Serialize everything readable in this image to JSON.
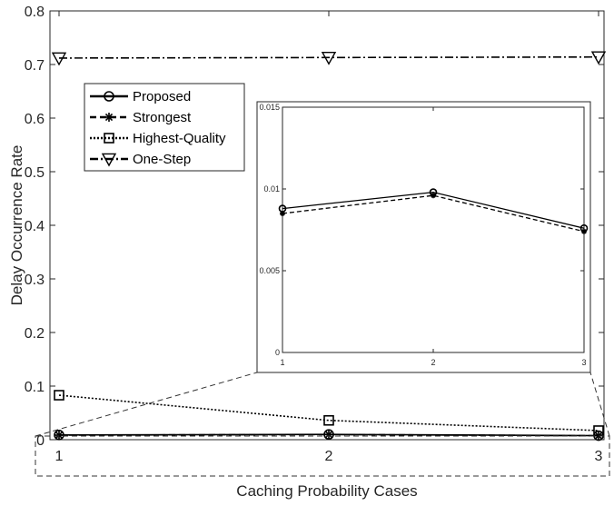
{
  "chart_data": [
    {
      "type": "line",
      "xlabel": "Caching Probability Cases",
      "ylabel": "Delay Occurrence Rate",
      "x": [
        1,
        2,
        3
      ],
      "xticks": [
        "1",
        "2",
        "3"
      ],
      "ylim": [
        0,
        0.8
      ],
      "yticks": [
        "0",
        "0.1",
        "0.2",
        "0.3",
        "0.4",
        "0.5",
        "0.6",
        "0.7",
        "0.8"
      ],
      "grid": false,
      "legend_position": "upper-left",
      "series": [
        {
          "name": "Proposed",
          "values": [
            0.0088,
            0.0098,
            0.0076
          ],
          "marker": "circle",
          "dash": "solid"
        },
        {
          "name": "Strongest",
          "values": [
            0.0085,
            0.0096,
            0.0074
          ],
          "marker": "asterisk",
          "dash": "dashed"
        },
        {
          "name": "Highest-Quality",
          "values": [
            0.083,
            0.036,
            0.017
          ],
          "marker": "square",
          "dash": "dotted"
        },
        {
          "name": "One-Step",
          "values": [
            0.712,
            0.713,
            0.714
          ],
          "marker": "triangle-down",
          "dash": "dashdot"
        }
      ]
    },
    {
      "type": "line",
      "role": "inset-zoom",
      "x": [
        1,
        2,
        3
      ],
      "xticks": [
        "1",
        "2",
        "3"
      ],
      "ylim": [
        0,
        0.015
      ],
      "yticks": [
        "0",
        "0.005",
        "0.01",
        "0.015"
      ],
      "series": [
        {
          "name": "Proposed",
          "values": [
            0.0088,
            0.0098,
            0.0076
          ]
        },
        {
          "name": "Strongest",
          "values": [
            0.0085,
            0.0096,
            0.0074
          ]
        }
      ]
    }
  ]
}
